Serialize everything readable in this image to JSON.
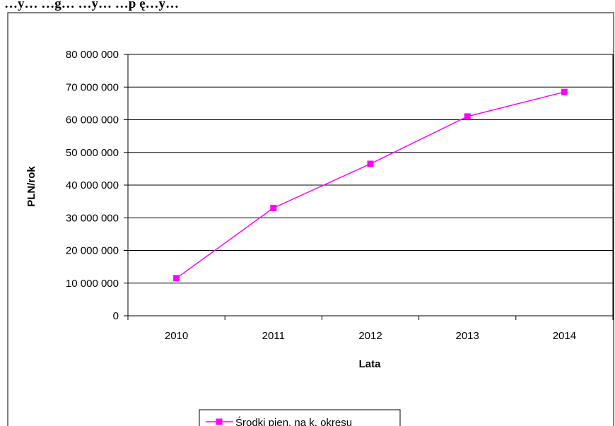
{
  "chart_data": {
    "type": "line",
    "title": "…y…  …g…  …y…  …p  ę…y…",
    "xlabel": "Lata",
    "ylabel": "PLN/rok",
    "categories": [
      "2010",
      "2011",
      "2012",
      "2013",
      "2014"
    ],
    "series": [
      {
        "name": "Środki pien. na k. okresu",
        "values": [
          11500000,
          33000000,
          46500000,
          61000000,
          68500000
        ],
        "color": "#ff00ff",
        "marker": "square"
      }
    ],
    "ylim": [
      0,
      80000000
    ],
    "yticks": [
      {
        "value": 0,
        "label": "0"
      },
      {
        "value": 10000000,
        "label": "10 000 000"
      },
      {
        "value": 20000000,
        "label": "20 000 000"
      },
      {
        "value": 30000000,
        "label": "30 000 000"
      },
      {
        "value": 40000000,
        "label": "40 000 000"
      },
      {
        "value": 50000000,
        "label": "50 000 000"
      },
      {
        "value": 60000000,
        "label": "60 000 000"
      },
      {
        "value": 70000000,
        "label": "70 000 000"
      },
      {
        "value": 80000000,
        "label": "80 000 000"
      }
    ],
    "grid": "horizontal",
    "legend_position": "bottom-left"
  }
}
